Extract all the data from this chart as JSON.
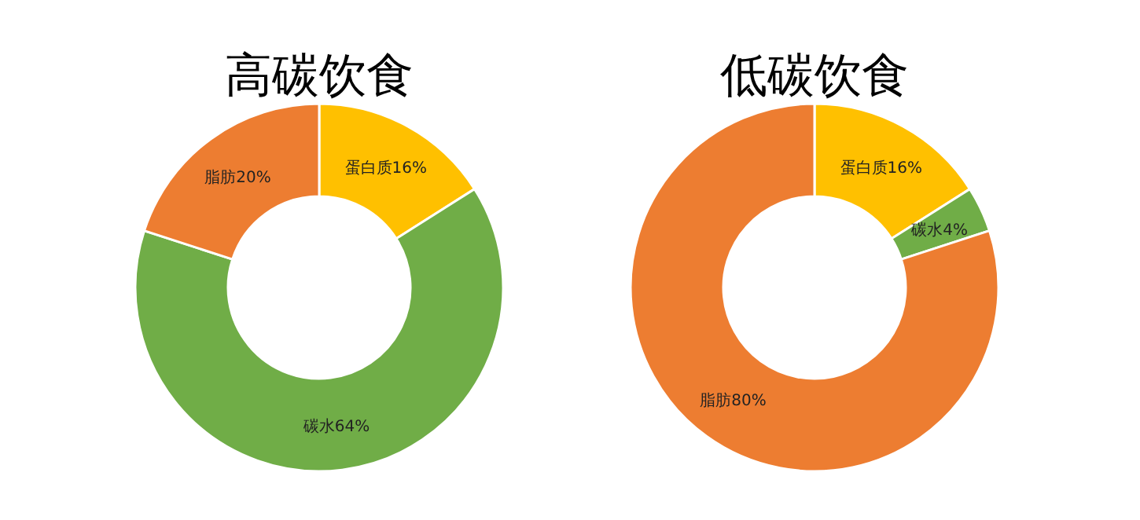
{
  "chart_data": [
    {
      "type": "donut",
      "title": "高碳饮食",
      "categories": [
        "蛋白质",
        "碳水",
        "脂肪"
      ],
      "values": [
        16,
        64,
        20
      ],
      "colors": [
        "#ffc000",
        "#70ad47",
        "#ed7d31"
      ],
      "value_labels": [
        "16%",
        "64%",
        "20%"
      ],
      "legend": false
    },
    {
      "type": "donut",
      "title": "低碳饮食",
      "categories": [
        "蛋白质",
        "碳水",
        "脂肪"
      ],
      "values": [
        16,
        4,
        80
      ],
      "colors": [
        "#ffc000",
        "#70ad47",
        "#ed7d31"
      ],
      "value_labels": [
        "16%",
        "4%",
        "80%"
      ],
      "legend": false
    }
  ]
}
